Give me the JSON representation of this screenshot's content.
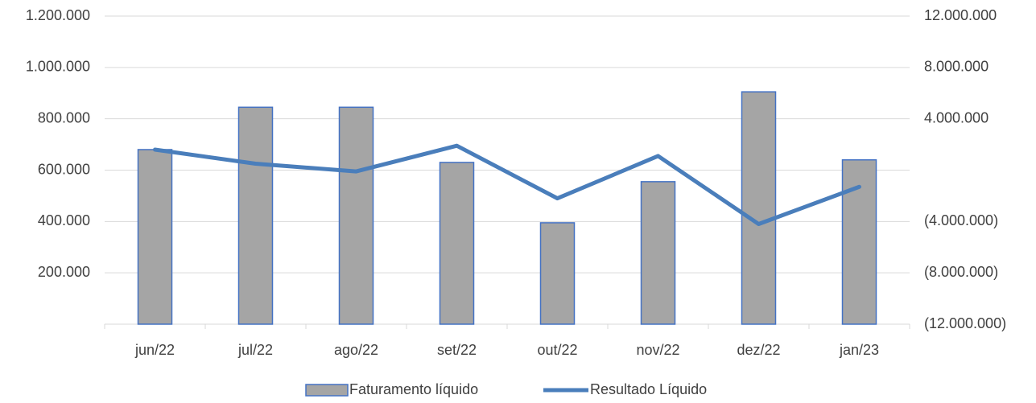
{
  "chart_data": {
    "type": "bar-line",
    "categories": [
      "jun/22",
      "jul/22",
      "ago/22",
      "set/22",
      "out/22",
      "nov/22",
      "dez/22",
      "jan/23"
    ],
    "series": [
      {
        "name": "Faturamento líquido",
        "type": "bar",
        "color": "#a5a5a5",
        "edge_color": "#4472c4",
        "values": [
          680000,
          845000,
          845000,
          630000,
          395000,
          555000,
          905000,
          640000
        ]
      },
      {
        "name": "Resultado Líquido",
        "type": "line",
        "axis": "y2",
        "color": "#4a7ebb",
        "values": [
          1600000,
          500000,
          -100000,
          1900000,
          -2200000,
          1100000,
          -4200000,
          -1300000
        ]
      }
    ],
    "ylim": [
      0,
      1200000
    ],
    "yticks": [
      {
        "value": 200000,
        "label": "200.000"
      },
      {
        "value": 400000,
        "label": "400.000"
      },
      {
        "value": 600000,
        "label": "600.000"
      },
      {
        "value": 800000,
        "label": "800.000"
      },
      {
        "value": 1000000,
        "label": "1.000.000"
      },
      {
        "value": 1200000,
        "label": "1.200.000"
      }
    ],
    "y2lim": [
      -12000000,
      12000000
    ],
    "y2ticks": [
      {
        "value": -12000000,
        "label": "(12.000.000)"
      },
      {
        "value": -8000000,
        "label": "(8.000.000)"
      },
      {
        "value": -4000000,
        "label": "(4.000.000)"
      },
      {
        "value": 4000000,
        "label": "4.000.000"
      },
      {
        "value": 8000000,
        "label": "8.000.000"
      },
      {
        "value": 12000000,
        "label": "12.000.000"
      }
    ],
    "grid": true,
    "legend": "bottom"
  }
}
